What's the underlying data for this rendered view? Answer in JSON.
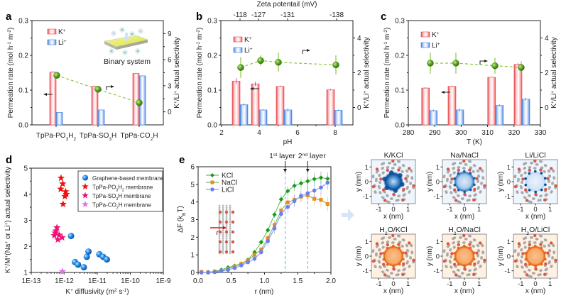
{
  "colors": {
    "k_bar": "#e8474c",
    "li_bar": "#3f7fe0",
    "selectivity": "#4a9a1c",
    "selectivity_line": "#8cc63f",
    "graphene": "#1e88e5",
    "po3h2": "#ee1111",
    "so3h": "#ee1177",
    "co2h": "#e070e8",
    "kcl": "#1a9a1a",
    "nacl": "#f08a1a",
    "licl": "#6a7ef0",
    "layer_line": "#5ab8f0",
    "k_map": "#0a4c9a",
    "h2o_map": "#e06010"
  },
  "chart_data": [
    {
      "panel": "a",
      "type": "bar",
      "categories": [
        "TpPa-PO3H2",
        "TpPa-SO3H",
        "TpPa-CO2H"
      ],
      "category_labels": [
        [
          "TpPa-PO",
          "3",
          "H",
          "2",
          ""
        ],
        [
          "TpPa-SO",
          "3",
          "H",
          "",
          ""
        ],
        [
          "TpPa-CO",
          "2",
          "H",
          "",
          ""
        ]
      ],
      "series": [
        {
          "name": "K+",
          "values": [
            0.152,
            0.111,
            0.148
          ],
          "errors": [
            0.002,
            0.002,
            0.001
          ]
        },
        {
          "name": "Li+",
          "values": [
            0.036,
            0.043,
            0.141
          ],
          "errors": [
            0.001,
            0.001,
            0.001
          ]
        }
      ],
      "secondary": {
        "name": "K+/Li+ actual selectivity",
        "values": [
          4.2,
          2.6,
          1.05
        ],
        "errors": [
          0.3,
          0.3,
          0.1
        ]
      },
      "ylabel": "Permeation rate (mol h-1 m-2)",
      "y2label": "K+/Li+ actual selectivity",
      "ylim": [
        0,
        0.3
      ],
      "yticks": [
        0.0,
        0.1,
        0.2,
        0.3
      ],
      "y2lim": [
        -1.5,
        10.5
      ],
      "y2ticks": [
        0,
        3,
        6,
        9
      ],
      "legend": [
        "K+",
        "Li+"
      ],
      "legend_position": "top-left",
      "annotation": "Binary system"
    },
    {
      "panel": "b",
      "type": "bar",
      "x": [
        3,
        4,
        5.5,
        8
      ],
      "series": [
        {
          "name": "K+",
          "values": [
            0.126,
            0.118,
            0.111,
            0.101
          ],
          "errors": [
            0.008,
            0.006,
            0.002,
            0.002
          ]
        },
        {
          "name": "Li+",
          "values": [
            0.058,
            0.043,
            0.043,
            0.042
          ],
          "errors": [
            0.004,
            0.002,
            0.005,
            0.002
          ]
        }
      ],
      "secondary": {
        "name": "K+/Li+ actual selectivity",
        "values": [
          2.3,
          2.7,
          2.6,
          2.45
        ],
        "errors": [
          0.6,
          0.3,
          0.55,
          0.55
        ]
      },
      "xlabel": "pH",
      "xlim": [
        2,
        9
      ],
      "xticks": [
        2,
        4,
        6,
        8
      ],
      "top_axis": {
        "label": "Zeta potentail (mV)",
        "ticks": [
          "-118",
          "-127",
          "-131",
          "-138"
        ],
        "positions": [
          3,
          4.2,
          5.5,
          8.1
        ]
      },
      "ylabel": "Permeation rate (mol h-1 m-2)",
      "y2label": "K+/Li+ actual selectivity",
      "ylim": [
        0,
        0.3
      ],
      "yticks": [
        0.0,
        0.1,
        0.2,
        0.3
      ],
      "y2lim": [
        -1,
        5
      ],
      "y2ticks": [
        0,
        2,
        4
      ],
      "legend": [
        "K+",
        "Li+"
      ],
      "legend_position": "top-left"
    },
    {
      "panel": "c",
      "type": "bar",
      "x": [
        288,
        298,
        313,
        323
      ],
      "series": [
        {
          "name": "K+",
          "values": [
            0.106,
            0.111,
            0.137,
            0.174
          ],
          "errors": [
            0.002,
            0.002,
            0.001,
            0.003
          ]
        },
        {
          "name": "Li+",
          "values": [
            0.041,
            0.043,
            0.056,
            0.074
          ],
          "errors": [
            0.003,
            0.004,
            0.003,
            0.004
          ]
        }
      ],
      "secondary": {
        "name": "K+/Li+ actual selectivity",
        "values": [
          2.55,
          2.55,
          2.4,
          2.3
        ],
        "errors": [
          0.6,
          0.6,
          0.45,
          0.35
        ]
      },
      "xlabel": "T (K)",
      "xlim": [
        280,
        330
      ],
      "xticks": [
        280,
        290,
        300,
        310,
        320,
        330
      ],
      "ylabel": "Permeation rate (mol h-1 m-2)",
      "y2label": "K+/Li+ actual selectivity",
      "ylim": [
        0,
        0.3
      ],
      "yticks": [
        0.0,
        0.1,
        0.2,
        0.3
      ],
      "y2lim": [
        -1,
        5
      ],
      "y2ticks": [
        0,
        2,
        4
      ],
      "legend": [
        "K+",
        "Li+"
      ],
      "legend_position": "top-left"
    },
    {
      "panel": "d",
      "type": "scatter",
      "xscale": "log",
      "xlabel": "K+ diffusivity (m2 s-1)",
      "ylabel": "K+/M+(Na+ or Li+) actual selectivity",
      "xlim": [
        1e-13,
        1e-09
      ],
      "xticks": [
        "1E-13",
        "1E-12",
        "1E-11",
        "1E-10",
        "1E-9"
      ],
      "ylim": [
        1,
        5
      ],
      "yticks": [
        1,
        2,
        3,
        4,
        5
      ],
      "legend_position": "top-right",
      "series": [
        {
          "name": "Graphene-based membrane",
          "marker": "circle",
          "points": [
            [
              1.6e-12,
              2.4
            ],
            [
              2.1e-12,
              1.4
            ],
            [
              2.6e-12,
              1.3
            ],
            [
              3.9e-12,
              1.2
            ],
            [
              4.8e-12,
              1.6
            ],
            [
              5.4e-12,
              1.8
            ],
            [
              1.15e-11,
              1.7
            ],
            [
              1.5e-11,
              1.6
            ],
            [
              1.95e-11,
              1.5
            ]
          ]
        },
        {
          "name": "TpPa-PO3H2 membrane",
          "marker": "star",
          "points": [
            [
              8e-13,
              4.62
            ],
            [
              9e-13,
              4.4
            ],
            [
              7.8e-13,
              4.2
            ],
            [
              1.1e-12,
              4.1
            ],
            [
              1.15e-12,
              4.0
            ],
            [
              1.05e-12,
              3.92
            ],
            [
              9.2e-13,
              3.62
            ]
          ]
        },
        {
          "name": "TpPa-SO3H membrane",
          "marker": "star",
          "points": [
            [
              6e-13,
              2.72
            ],
            [
              5.6e-13,
              2.6
            ],
            [
              5.3e-13,
              2.52
            ],
            [
              5e-13,
              2.42
            ],
            [
              7e-13,
              2.44
            ],
            [
              8.6e-13,
              2.34
            ],
            [
              6.4e-13,
              2.26
            ]
          ]
        },
        {
          "name": "TpPa-CO2H membrane",
          "marker": "star",
          "points": [
            [
              8.8e-13,
              1.04
            ]
          ]
        }
      ]
    },
    {
      "panel": "e",
      "type": "line",
      "xlabel": "r (nm)",
      "ylabel": "ΔF (kBT)",
      "xlim": [
        0,
        2
      ],
      "xticks": [
        0.0,
        0.5,
        1.0,
        1.5,
        2.0
      ],
      "ylim": [
        0,
        6
      ],
      "yticks": [
        0,
        1,
        2,
        3,
        4,
        5,
        6
      ],
      "x": [
        0.05,
        0.15,
        0.25,
        0.35,
        0.45,
        0.55,
        0.65,
        0.75,
        0.85,
        0.95,
        1.05,
        1.15,
        1.25,
        1.35,
        1.45,
        1.55,
        1.65,
        1.75,
        1.85,
        1.95
      ],
      "series": [
        {
          "name": "KCl",
          "marker": "diamond",
          "values": [
            0.0,
            0.02,
            0.06,
            0.15,
            0.28,
            0.38,
            0.5,
            0.72,
            1.15,
            1.72,
            2.4,
            3.28,
            4.15,
            4.62,
            4.92,
            5.06,
            5.18,
            5.3,
            5.38,
            5.32
          ],
          "errors": [
            0.05,
            0.05,
            0.05,
            0.08,
            0.1,
            0.1,
            0.1,
            0.1,
            0.12,
            0.15,
            0.15,
            0.18,
            0.25,
            0.28,
            0.3,
            0.3,
            0.35,
            0.35,
            0.35,
            0.35
          ]
        },
        {
          "name": "NaCl",
          "marker": "square",
          "values": [
            0.03,
            0.0,
            0.05,
            0.1,
            0.2,
            0.35,
            0.48,
            0.68,
            1.0,
            1.3,
            1.95,
            2.7,
            3.52,
            3.98,
            4.12,
            4.3,
            4.38,
            4.18,
            4.12,
            3.88
          ],
          "errors": [
            0.08,
            0.08,
            0.08,
            0.1,
            0.12,
            0.15,
            0.18,
            0.15,
            0.15,
            0.2,
            0.2,
            0.25,
            0.25,
            0.3,
            0.3,
            0.3,
            0.35,
            0.35,
            0.4,
            0.4
          ]
        },
        {
          "name": "LiCl",
          "marker": "circle",
          "values": [
            0.0,
            0.0,
            0.02,
            0.07,
            0.15,
            0.25,
            0.4,
            0.58,
            0.78,
            1.15,
            1.78,
            2.5,
            3.32,
            3.72,
            4.05,
            4.35,
            4.5,
            4.65,
            4.82,
            5.1
          ],
          "errors": [
            0.05,
            0.05,
            0.05,
            0.08,
            0.1,
            0.1,
            0.12,
            0.12,
            0.15,
            0.2,
            0.25,
            0.3,
            0.3,
            0.35,
            0.35,
            0.35,
            0.35,
            0.4,
            0.4,
            0.4
          ]
        }
      ],
      "reference_lines": [
        {
          "x": 1.31,
          "label": "1st layer"
        },
        {
          "x": 1.65,
          "label": "2nd layer"
        }
      ],
      "legend_position": "top-left"
    },
    {
      "panel": "maps",
      "type": "heatmap",
      "titles": [
        "K/KCl",
        "Na/NaCl",
        "Li/LiCl",
        "H2O/KCl",
        "H2O/NaCl",
        "H2O/LiCl"
      ],
      "xlabel": "x (nm)",
      "ylabel": "y (nm)",
      "xticks": [
        -1,
        0,
        1
      ],
      "yticks": [
        1,
        0,
        -1
      ],
      "xlim": [
        -1.5,
        1.5
      ],
      "ylim": [
        -1.5,
        1.5
      ]
    }
  ],
  "labels": {
    "panel_a": "a",
    "panel_b": "b",
    "panel_c": "c",
    "panel_d": "d",
    "panel_e": "e",
    "perm_ylabel": "Permeation rate (mol h",
    "binary_system": "Binary system",
    "k_legend": "K",
    "li_legend": "Li",
    "zeta_title": "Zeta potentail (mV)",
    "ph": "pH",
    "tk": "T (K)",
    "r_nm": "r (nm)",
    "x_nm": "x (nm)",
    "y_nm": "y (nm)",
    "first_layer": "1",
    "first_sup": "st",
    "second_layer": "2",
    "second_sup": "nd",
    "layer_word": " layer",
    "r_symbol": "r"
  }
}
